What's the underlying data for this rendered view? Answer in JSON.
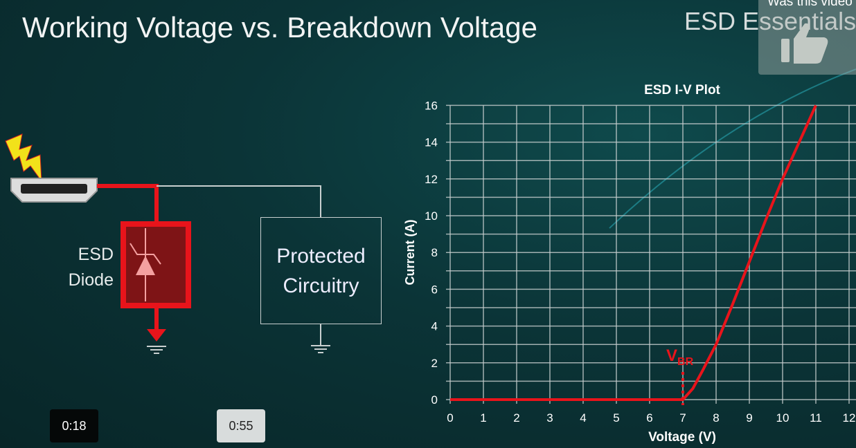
{
  "slide": {
    "title": "Working Voltage vs. Breakdown Voltage",
    "brand": "ESD Essentials",
    "diagram": {
      "diode_label_1": "ESD",
      "diode_label_2": "Diode",
      "block_label_1": "Protected",
      "block_label_2": "Circuitry"
    }
  },
  "overlay": {
    "feedback_text": "Was this video",
    "feedback_icon": "thumbs-up-icon"
  },
  "player": {
    "time_current": "0:18",
    "time_hover": "0:55"
  },
  "colors": {
    "curve": "#e8141b",
    "grid": "#c8cfcf",
    "background": "#0b3437"
  },
  "chart_data": {
    "type": "line",
    "title": "ESD I-V Plot",
    "xlabel": "Voltage (V)",
    "ylabel": "Current (A)",
    "xlim": [
      0,
      12
    ],
    "ylim": [
      0,
      16
    ],
    "grid": true,
    "xticks": [
      0,
      1,
      2,
      3,
      4,
      5,
      6,
      7,
      8,
      9,
      10,
      11,
      12
    ],
    "yticks": [
      0,
      2,
      4,
      6,
      8,
      10,
      12,
      14,
      16
    ],
    "series": [
      {
        "x": [
          0,
          6,
          7,
          7.3,
          7.6,
          8,
          8.5,
          9,
          9.5,
          10,
          10.5,
          11
        ],
        "y": [
          0,
          0,
          0,
          0.6,
          1.6,
          3,
          5.2,
          7.5,
          9.8,
          12,
          14,
          16
        ]
      }
    ],
    "annotation": {
      "label": "V",
      "subscript": "BR",
      "x": 7
    }
  }
}
